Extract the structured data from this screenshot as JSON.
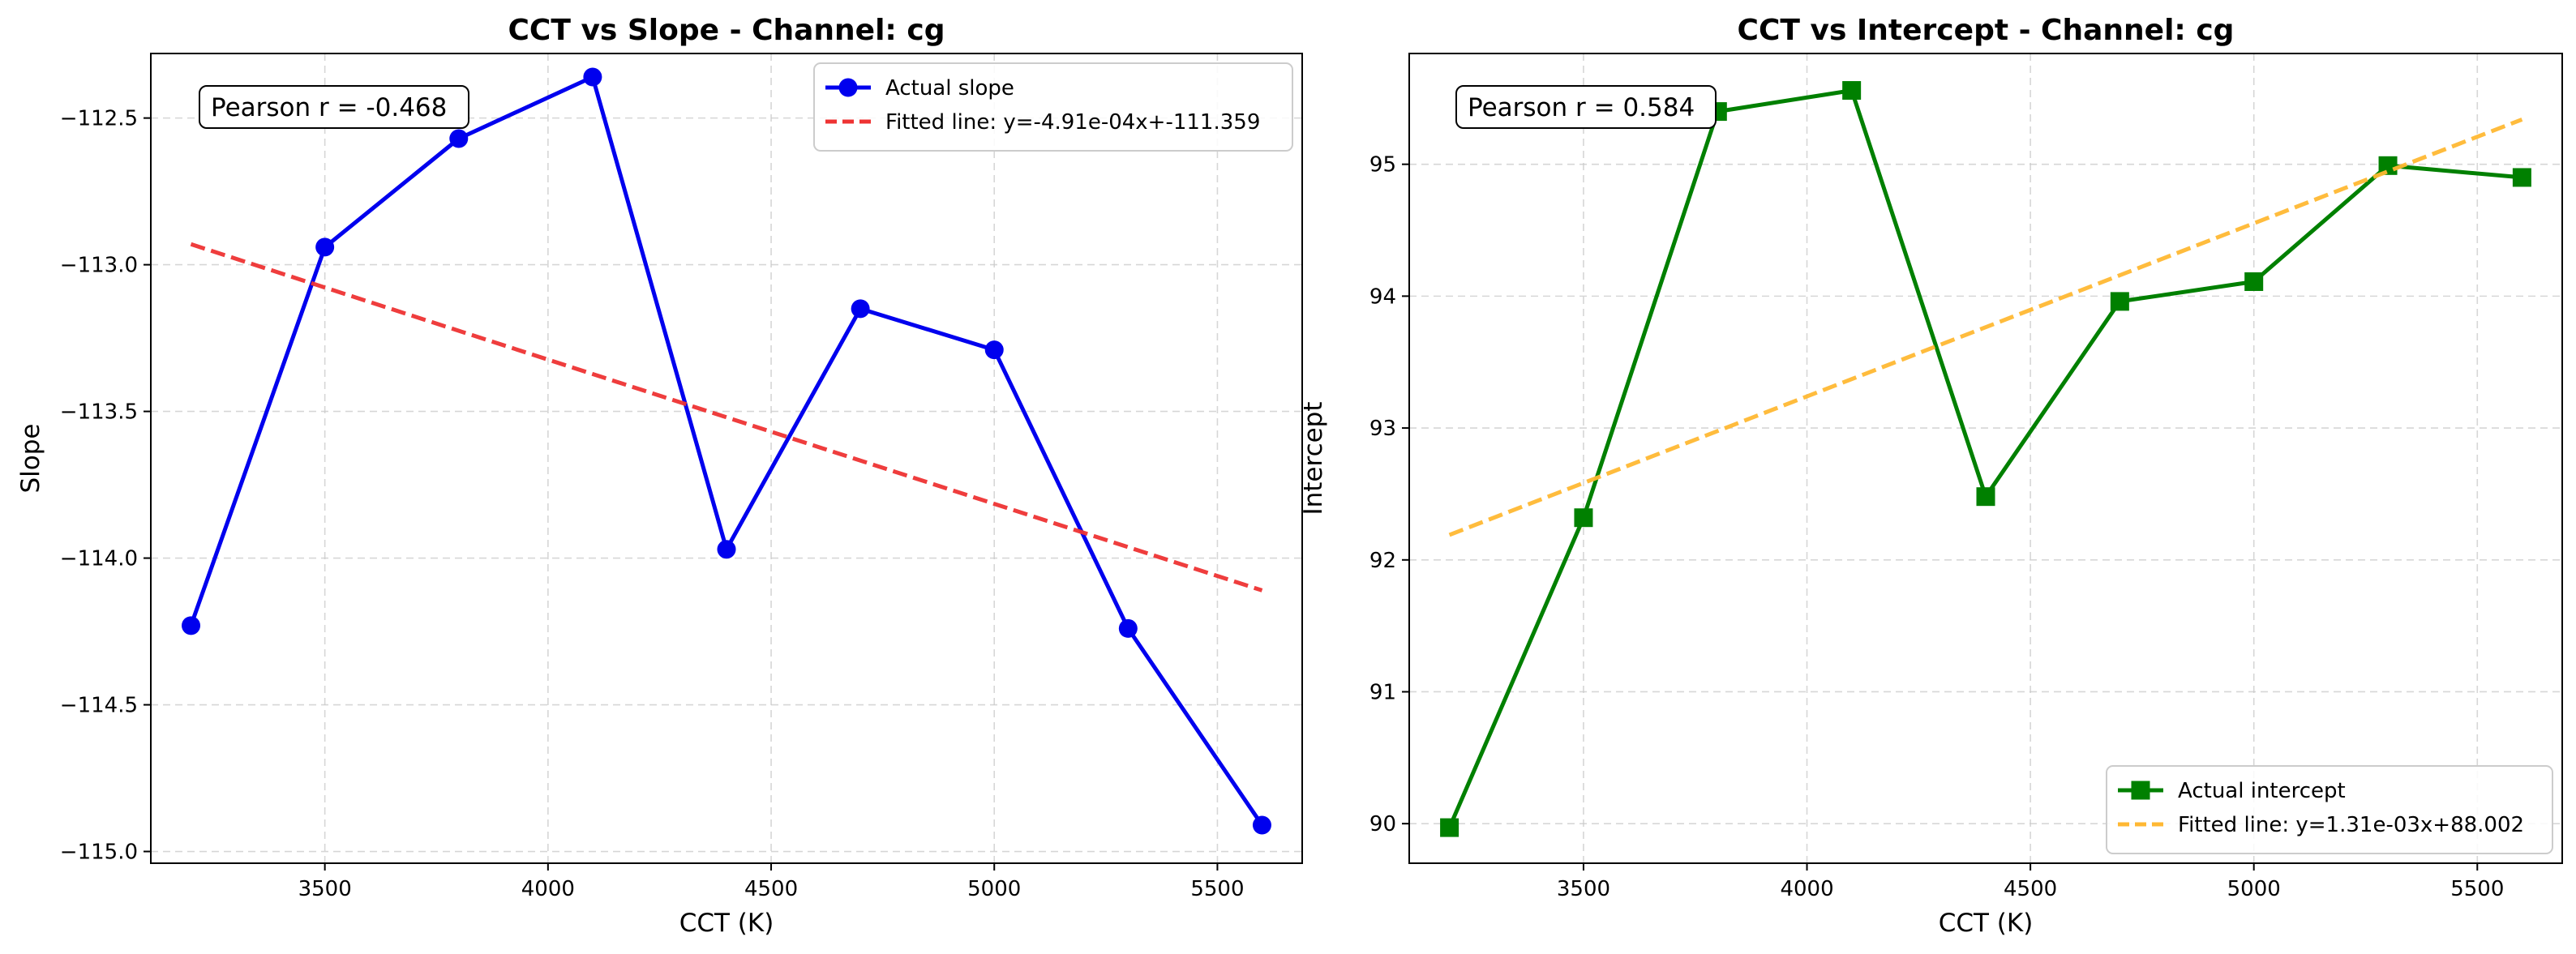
{
  "chart_data": [
    {
      "type": "line",
      "title": "CCT vs Slope - Channel: cg",
      "xlabel": "CCT (K)",
      "ylabel": "Slope",
      "xlim": [
        3110,
        5690
      ],
      "ylim": [
        -115.04,
        -112.28
      ],
      "xticks": [
        3500,
        4000,
        4500,
        5000,
        5500
      ],
      "xtick_labels": [
        "3500",
        "4000",
        "4500",
        "5000",
        "5500"
      ],
      "yticks": [
        -115.0,
        -114.5,
        -114.0,
        -113.5,
        -113.0,
        -112.5
      ],
      "ytick_labels": [
        "−115.0",
        "−114.5",
        "−114.0",
        "−113.5",
        "−113.0",
        "−112.5"
      ],
      "grid": true,
      "legend_position": "top-right",
      "annotation": "Pearson r = -0.468",
      "series": [
        {
          "name": "Actual slope",
          "color": "#0000ee",
          "marker": "circle",
          "style": "solid",
          "x": [
            3200,
            3500,
            3800,
            4100,
            4400,
            4700,
            5000,
            5300,
            5600
          ],
          "y": [
            -114.23,
            -112.94,
            -112.57,
            -112.36,
            -113.97,
            -113.15,
            -113.29,
            -114.24,
            -114.91
          ]
        },
        {
          "name": "Fitted line: y=-4.91e-04x+-111.359",
          "color": "#ee3333",
          "marker": "none",
          "style": "dashed",
          "x": [
            3200,
            5600
          ],
          "y": [
            -112.93,
            -114.11
          ]
        }
      ]
    },
    {
      "type": "line",
      "title": "CCT vs Intercept - Channel: cg",
      "xlabel": "CCT (K)",
      "ylabel": "Intercept",
      "xlim": [
        3110,
        5690
      ],
      "ylim": [
        89.7,
        95.84
      ],
      "xticks": [
        3500,
        4000,
        4500,
        5000,
        5500
      ],
      "xtick_labels": [
        "3500",
        "4000",
        "4500",
        "5000",
        "5500"
      ],
      "yticks": [
        90,
        91,
        92,
        93,
        94,
        95
      ],
      "ytick_labels": [
        "90",
        "91",
        "92",
        "93",
        "94",
        "95"
      ],
      "grid": true,
      "legend_position": "bottom-right",
      "annotation": "Pearson r = 0.584",
      "series": [
        {
          "name": "Actual intercept",
          "color": "#008000",
          "marker": "square",
          "style": "solid",
          "x": [
            3200,
            3500,
            3800,
            4100,
            4400,
            4700,
            5000,
            5300,
            5600
          ],
          "y": [
            89.97,
            92.32,
            95.4,
            95.56,
            92.48,
            93.96,
            94.11,
            94.99,
            94.9
          ]
        },
        {
          "name": "Fitted line: y=1.31e-03x+88.002",
          "color": "#ffb833",
          "marker": "none",
          "style": "dashed",
          "x": [
            3200,
            5600
          ],
          "y": [
            92.19,
            95.34
          ]
        }
      ]
    }
  ]
}
